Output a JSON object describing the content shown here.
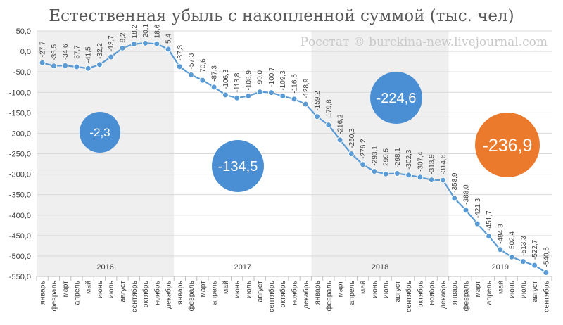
{
  "chart_data": {
    "type": "line",
    "title": "Естественная убыль с накопленной суммой (тыс. чел)",
    "watermark": "Росстат © burckina-new.livejournal.com",
    "ylim": [
      -550,
      50
    ],
    "yticks": [
      "50,0",
      "0,0",
      "-50,0",
      "-100,0",
      "-150,0",
      "-200,0",
      "-250,0",
      "-300,0",
      "-350,0",
      "-400,0",
      "-450,0",
      "-500,0",
      "-550,0"
    ],
    "grid": true,
    "line_color": "#5b9bd5",
    "band_color": "#efefef",
    "categories": [
      "январь",
      "февраль",
      "март",
      "апрель",
      "май",
      "июнь",
      "июль",
      "август",
      "сентябрь",
      "октябрь",
      "ноябрь",
      "декабрь",
      "январь",
      "февраль",
      "март",
      "апрель",
      "май",
      "июнь",
      "июль",
      "август",
      "сентябрь",
      "октябрь",
      "ноябрь",
      "декабрь",
      "январь",
      "февраль",
      "март",
      "апрель",
      "май",
      "июнь",
      "июль",
      "август",
      "сентябрь",
      "октябрь",
      "ноябрь",
      "декабрь",
      "январь",
      "февраль",
      "март",
      "апрель",
      "май",
      "июнь",
      "июль",
      "август",
      "сентябрь"
    ],
    "values": [
      -27.7,
      -35.5,
      -34.6,
      -37.7,
      -41.5,
      -32.2,
      -13.7,
      8.2,
      18.2,
      20.1,
      18.6,
      5.4,
      -37.3,
      -57.3,
      -70.6,
      -87.3,
      -106.3,
      -113.8,
      -108.9,
      -99.0,
      -100.7,
      -109.3,
      -116.5,
      -128.9,
      -159.2,
      -179.8,
      -216.2,
      -250.3,
      -276.2,
      -293.1,
      -299.5,
      -298.1,
      -302.3,
      -307.4,
      -313.9,
      -314.6,
      -358.9,
      -388.0,
      -421.3,
      -451.7,
      -484.3,
      -502.4,
      -513.3,
      -522.7,
      -540.5
    ],
    "labels": [
      "-27,7",
      "-35,5",
      "-34,6",
      "-37,7",
      "-41,5",
      "-32,2",
      "-13,7",
      "8,2",
      "18,2",
      "20,1",
      "18,6",
      "5,4",
      "-37,3",
      "-57,3",
      "-70,6",
      "-87,3",
      "-106,3",
      "-113,8",
      "-108,9",
      "-99,0",
      "-100,7",
      "-109,3",
      "-116,5",
      "-128,9",
      "-159,2",
      "-179,8",
      "-216,2",
      "-250,3",
      "-276,2",
      "-293,1",
      "-299,5",
      "-298,1",
      "-302,3",
      "-307,4",
      "-313,9",
      "-314,6",
      "-358,9",
      "-388,0",
      "-421,3",
      "-451,7",
      "-484,3",
      "-502,4",
      "-513,3",
      "-522,7",
      "-540,5"
    ],
    "years": [
      {
        "label": "2016",
        "start": 0,
        "end": 11
      },
      {
        "label": "2017",
        "start": 12,
        "end": 23
      },
      {
        "label": "2018",
        "start": 24,
        "end": 35
      },
      {
        "label": "2019",
        "start": 36,
        "end": 44
      }
    ],
    "bubbles": [
      {
        "text": "-2,3",
        "color": "#4a8fd4"
      },
      {
        "text": "-134,5",
        "color": "#4a8fd4"
      },
      {
        "text": "-224,6",
        "color": "#4a8fd4"
      },
      {
        "text": "-236,9",
        "color": "#ec7a2d"
      }
    ]
  }
}
